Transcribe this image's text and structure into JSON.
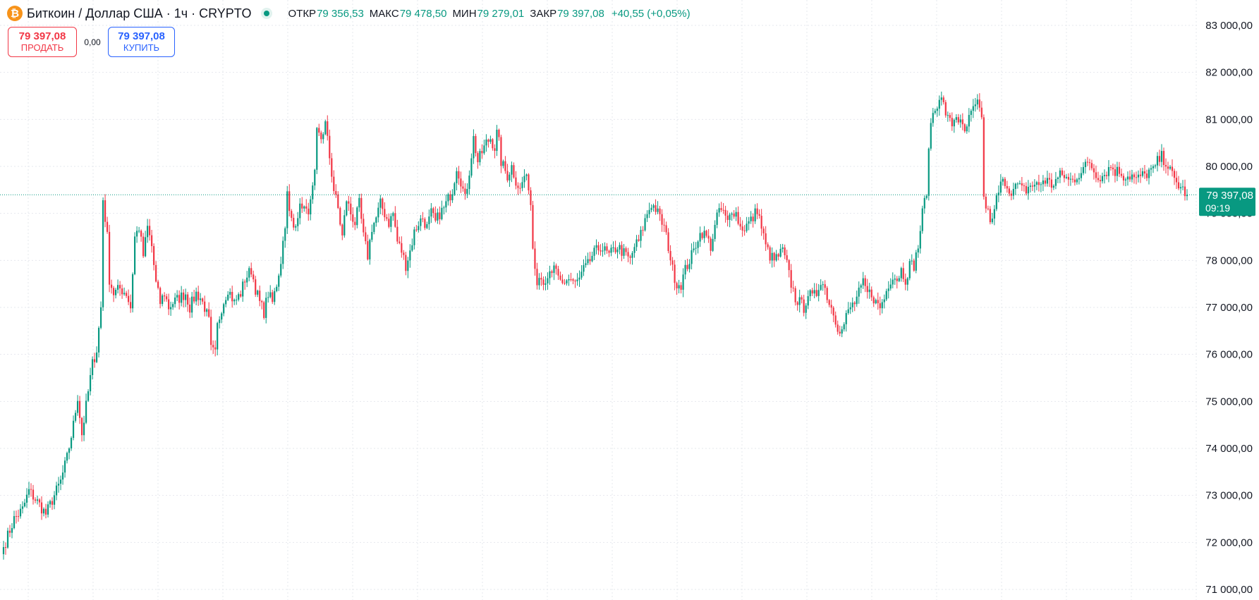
{
  "header": {
    "coin_icon_glyph": "₿",
    "coin_icon": "bitcoin-icon",
    "symbol_title": "Биткоин / Доллар США · 1ч · CRYPTO",
    "market_status_icon": "market-open-dot-icon",
    "ohlc": {
      "open_label": "ОТКР",
      "open_value": "79 356,53",
      "high_label": "МАКС",
      "high_value": "79 478,50",
      "low_label": "МИН",
      "low_value": "79 279,01",
      "close_label": "ЗАКР",
      "close_value": "79 397,08",
      "change": "+40,55 (+0,05%)"
    }
  },
  "trade": {
    "sell_price": "79 397,08",
    "sell_label": "ПРОДАТЬ",
    "spread": "0,00",
    "buy_price": "79 397,08",
    "buy_label": "КУПИТЬ"
  },
  "colors": {
    "up": "#089981",
    "down": "#f23645",
    "grid": "#e6e8ee",
    "sell": "#f23645",
    "buy": "#2962ff",
    "bitcoin": "#f7931a"
  },
  "chart_data": {
    "type": "candlestick",
    "interval": "1ч",
    "ylim": [
      71000,
      83000
    ],
    "grid": true,
    "y_ticks": [
      83000,
      82000,
      81000,
      80000,
      79000,
      78000,
      77000,
      76000,
      75000,
      74000,
      73000,
      72000,
      71000
    ],
    "y_tick_labels": [
      "83 000,00",
      "82 000,00",
      "81 000,00",
      "80 000,00",
      "79 000,00",
      "78 000,00",
      "77 000,00",
      "76 000,00",
      "75 000,00",
      "74 000,00",
      "73 000,00",
      "72 000,00",
      "71 000,00"
    ],
    "last_price": 79397.08,
    "last_price_label": "79 397,08",
    "countdown_label": "09:19",
    "close_path": [
      [
        0,
        71900
      ],
      [
        5,
        72500
      ],
      [
        9,
        72700
      ],
      [
        12,
        73100
      ],
      [
        17,
        72800
      ],
      [
        20,
        72600
      ],
      [
        23,
        72900
      ],
      [
        27,
        73300
      ],
      [
        30,
        73800
      ],
      [
        33,
        74500
      ],
      [
        35,
        75100
      ],
      [
        37,
        74300
      ],
      [
        40,
        75200
      ],
      [
        42,
        75800
      ],
      [
        44,
        76100
      ],
      [
        46,
        77000
      ],
      [
        47,
        79300
      ],
      [
        49,
        78500
      ],
      [
        50,
        77600
      ],
      [
        52,
        77300
      ],
      [
        55,
        77400
      ],
      [
        58,
        77300
      ],
      [
        60,
        77000
      ],
      [
        62,
        78500
      ],
      [
        64,
        78700
      ],
      [
        66,
        78100
      ],
      [
        68,
        78700
      ],
      [
        70,
        78300
      ],
      [
        72,
        77500
      ],
      [
        74,
        77100
      ],
      [
        76,
        77300
      ],
      [
        78,
        77000
      ],
      [
        80,
        77100
      ],
      [
        83,
        77200
      ],
      [
        86,
        77300
      ],
      [
        88,
        77000
      ],
      [
        91,
        77300
      ],
      [
        93,
        77200
      ],
      [
        95,
        77000
      ],
      [
        97,
        76700
      ],
      [
        98,
        76100
      ],
      [
        100,
        76000
      ],
      [
        101,
        76600
      ],
      [
        103,
        77000
      ],
      [
        106,
        77400
      ],
      [
        109,
        77100
      ],
      [
        112,
        77300
      ],
      [
        114,
        77600
      ],
      [
        117,
        77800
      ],
      [
        119,
        77400
      ],
      [
        121,
        77100
      ],
      [
        123,
        76900
      ],
      [
        125,
        77300
      ],
      [
        127,
        77100
      ],
      [
        129,
        77500
      ],
      [
        131,
        78000
      ],
      [
        133,
        78800
      ],
      [
        134,
        79400
      ],
      [
        135,
        79000
      ],
      [
        137,
        78700
      ],
      [
        139,
        79000
      ],
      [
        141,
        79200
      ],
      [
        143,
        79000
      ],
      [
        145,
        79200
      ],
      [
        147,
        79800
      ],
      [
        148,
        80700
      ],
      [
        150,
        80600
      ],
      [
        152,
        80900
      ],
      [
        154,
        80200
      ],
      [
        156,
        79500
      ],
      [
        158,
        79100
      ],
      [
        160,
        78500
      ],
      [
        162,
        79300
      ],
      [
        164,
        79000
      ],
      [
        166,
        78800
      ],
      [
        168,
        79200
      ],
      [
        170,
        78500
      ],
      [
        172,
        78100
      ],
      [
        174,
        78700
      ],
      [
        176,
        78900
      ],
      [
        178,
        79200
      ],
      [
        180,
        79000
      ],
      [
        182,
        78800
      ],
      [
        184,
        79000
      ],
      [
        186,
        78400
      ],
      [
        188,
        78200
      ],
      [
        190,
        77900
      ],
      [
        192,
        78200
      ],
      [
        194,
        78600
      ],
      [
        196,
        78800
      ],
      [
        198,
        78900
      ],
      [
        200,
        78700
      ],
      [
        202,
        79000
      ],
      [
        204,
        78800
      ],
      [
        206,
        79000
      ],
      [
        208,
        79100
      ],
      [
        210,
        79300
      ],
      [
        212,
        79500
      ],
      [
        214,
        80000
      ],
      [
        216,
        79700
      ],
      [
        218,
        79300
      ],
      [
        220,
        79900
      ],
      [
        222,
        80600
      ],
      [
        224,
        80100
      ],
      [
        226,
        80300
      ],
      [
        228,
        80500
      ],
      [
        230,
        80600
      ],
      [
        232,
        80400
      ],
      [
        233,
        80700
      ],
      [
        234,
        80500
      ],
      [
        235,
        80100
      ],
      [
        236,
        80000
      ],
      [
        238,
        79800
      ],
      [
        240,
        80000
      ],
      [
        242,
        79700
      ],
      [
        244,
        79500
      ],
      [
        246,
        79800
      ],
      [
        248,
        79600
      ],
      [
        249,
        79200
      ],
      [
        250,
        78300
      ],
      [
        252,
        77600
      ],
      [
        254,
        77700
      ],
      [
        256,
        77400
      ],
      [
        258,
        77700
      ],
      [
        260,
        77800
      ],
      [
        262,
        77600
      ],
      [
        264,
        77500
      ],
      [
        266,
        77600
      ],
      [
        268,
        77600
      ],
      [
        270,
        77500
      ],
      [
        272,
        77600
      ],
      [
        274,
        77800
      ],
      [
        276,
        77900
      ],
      [
        278,
        78100
      ],
      [
        280,
        78200
      ],
      [
        282,
        78300
      ],
      [
        284,
        78200
      ],
      [
        286,
        78100
      ],
      [
        288,
        78200
      ],
      [
        290,
        78300
      ],
      [
        292,
        78200
      ],
      [
        294,
        78100
      ],
      [
        296,
        78000
      ],
      [
        298,
        78300
      ],
      [
        300,
        78400
      ],
      [
        302,
        78700
      ],
      [
        304,
        79000
      ],
      [
        306,
        79200
      ],
      [
        308,
        79100
      ],
      [
        310,
        78900
      ],
      [
        312,
        78700
      ],
      [
        314,
        78300
      ],
      [
        316,
        77800
      ],
      [
        318,
        77500
      ],
      [
        320,
        77500
      ],
      [
        322,
        77800
      ],
      [
        324,
        78000
      ],
      [
        326,
        78200
      ],
      [
        328,
        78500
      ],
      [
        330,
        78600
      ],
      [
        332,
        78500
      ],
      [
        334,
        78300
      ],
      [
        336,
        78700
      ],
      [
        338,
        79100
      ],
      [
        340,
        79000
      ],
      [
        342,
        78800
      ],
      [
        344,
        79100
      ],
      [
        346,
        79000
      ],
      [
        348,
        78700
      ],
      [
        350,
        78700
      ],
      [
        352,
        78800
      ],
      [
        354,
        78900
      ],
      [
        356,
        79100
      ],
      [
        358,
        78700
      ],
      [
        360,
        78300
      ],
      [
        362,
        78100
      ],
      [
        364,
        78000
      ],
      [
        366,
        78100
      ],
      [
        368,
        78200
      ],
      [
        370,
        77900
      ],
      [
        372,
        77500
      ],
      [
        374,
        77200
      ],
      [
        376,
        77100
      ],
      [
        378,
        77000
      ],
      [
        380,
        77300
      ],
      [
        382,
        77200
      ],
      [
        384,
        77300
      ],
      [
        386,
        77600
      ],
      [
        388,
        77400
      ],
      [
        390,
        77100
      ],
      [
        392,
        76900
      ],
      [
        394,
        76600
      ],
      [
        396,
        76500
      ],
      [
        398,
        76800
      ],
      [
        400,
        77000
      ],
      [
        402,
        77100
      ],
      [
        404,
        77300
      ],
      [
        406,
        77500
      ],
      [
        408,
        77300
      ],
      [
        410,
        77300
      ],
      [
        412,
        77100
      ],
      [
        414,
        77000
      ],
      [
        416,
        77200
      ],
      [
        418,
        77500
      ],
      [
        420,
        77700
      ],
      [
        422,
        77600
      ],
      [
        424,
        77800
      ],
      [
        426,
        77600
      ],
      [
        428,
        77900
      ],
      [
        430,
        77900
      ],
      [
        432,
        78300
      ],
      [
        434,
        79000
      ],
      [
        436,
        79500
      ],
      [
        438,
        81000
      ],
      [
        440,
        81200
      ],
      [
        442,
        81500
      ],
      [
        444,
        81300
      ],
      [
        446,
        81000
      ],
      [
        448,
        80900
      ],
      [
        450,
        81100
      ],
      [
        452,
        80900
      ],
      [
        454,
        80700
      ],
      [
        456,
        81000
      ],
      [
        458,
        81200
      ],
      [
        460,
        81300
      ],
      [
        462,
        81100
      ],
      [
        463,
        79300
      ],
      [
        465,
        79000
      ],
      [
        467,
        78800
      ],
      [
        469,
        79300
      ],
      [
        471,
        79600
      ],
      [
        473,
        79700
      ],
      [
        475,
        79500
      ],
      [
        477,
        79500
      ],
      [
        479,
        79600
      ],
      [
        481,
        79500
      ],
      [
        483,
        79500
      ],
      [
        485,
        79600
      ],
      [
        487,
        79600
      ],
      [
        489,
        79600
      ],
      [
        491,
        79700
      ],
      [
        493,
        79700
      ],
      [
        495,
        79600
      ],
      [
        497,
        79700
      ],
      [
        499,
        79800
      ],
      [
        501,
        79800
      ],
      [
        503,
        79700
      ],
      [
        505,
        79700
      ],
      [
        507,
        79800
      ],
      [
        509,
        79900
      ],
      [
        511,
        80000
      ],
      [
        513,
        80100
      ],
      [
        515,
        79900
      ],
      [
        517,
        79800
      ],
      [
        519,
        79800
      ],
      [
        521,
        79900
      ],
      [
        523,
        80000
      ],
      [
        525,
        79900
      ],
      [
        527,
        79900
      ],
      [
        529,
        79800
      ],
      [
        531,
        79800
      ],
      [
        533,
        79800
      ],
      [
        535,
        79700
      ],
      [
        537,
        79800
      ],
      [
        539,
        79800
      ],
      [
        541,
        79900
      ],
      [
        543,
        79900
      ],
      [
        545,
        80100
      ],
      [
        547,
        80200
      ],
      [
        549,
        80100
      ],
      [
        551,
        79900
      ],
      [
        553,
        79700
      ],
      [
        555,
        79600
      ],
      [
        557,
        79500
      ],
      [
        559,
        79400
      ]
    ]
  }
}
